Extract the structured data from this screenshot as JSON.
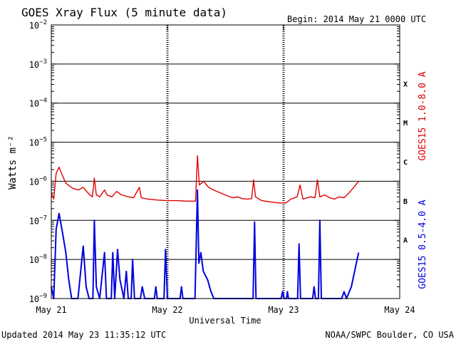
{
  "title": "GOES Xray Flux (5 minute data)",
  "begin": "Begin:  2014 May 21 0000 UTC",
  "updated": "Updated 2014 May 23 11:35:12 UTC",
  "source": "NOAA/SWPC Boulder, CO USA",
  "colors": {
    "long": "#e00000",
    "short": "#0000e0",
    "axis": "#000000"
  },
  "chart_data": {
    "type": "line",
    "title": "GOES Xray Flux (5 minute data)",
    "xlabel": "Universal Time",
    "ylabel": "Watts m⁻²",
    "x_range_hours": [
      0,
      72
    ],
    "x_ticks": [
      {
        "h": 0,
        "label": "May 21"
      },
      {
        "h": 24,
        "label": "May 22"
      },
      {
        "h": 48,
        "label": "May 23"
      },
      {
        "h": 72,
        "label": "May 24"
      }
    ],
    "y_scale": "log",
    "ylim": [
      1e-09,
      0.01
    ],
    "y_ticks": [
      {
        "exp": -9,
        "label": "10",
        "sup": "−9"
      },
      {
        "exp": -8,
        "label": "10",
        "sup": "−8"
      },
      {
        "exp": -7,
        "label": "10",
        "sup": "−7"
      },
      {
        "exp": -6,
        "label": "10",
        "sup": "−6"
      },
      {
        "exp": -5,
        "label": "10",
        "sup": "−5"
      },
      {
        "exp": -4,
        "label": "10",
        "sup": "−4"
      },
      {
        "exp": -3,
        "label": "10",
        "sup": "−3"
      },
      {
        "exp": -2,
        "label": "10",
        "sup": "−2"
      }
    ],
    "flare_classes": [
      {
        "label": "A",
        "exp": -8
      },
      {
        "label": "B",
        "exp": -7
      },
      {
        "label": "C",
        "exp": -6
      },
      {
        "label": "M",
        "exp": -5
      },
      {
        "label": "X",
        "exp": -4
      }
    ],
    "grid": true,
    "series": [
      {
        "name": "GOES15 1.0-8.0 A",
        "color": "#e00000",
        "points": [
          [
            0,
            5e-07
          ],
          [
            0.5,
            3.5e-07
          ],
          [
            1.0,
            1.6e-06
          ],
          [
            1.6,
            2.3e-06
          ],
          [
            2.3,
            1.4e-06
          ],
          [
            3.0,
            9e-07
          ],
          [
            3.8,
            7.5e-07
          ],
          [
            4.6,
            6.5e-07
          ],
          [
            5.6,
            6e-07
          ],
          [
            6.6,
            7e-07
          ],
          [
            7.3,
            5.5e-07
          ],
          [
            8.0,
            4.5e-07
          ],
          [
            8.5,
            4e-07
          ],
          [
            8.9,
            1.2e-06
          ],
          [
            9.3,
            4.5e-07
          ],
          [
            10.0,
            4e-07
          ],
          [
            11.0,
            6e-07
          ],
          [
            11.5,
            4.5e-07
          ],
          [
            12.5,
            4e-07
          ],
          [
            13.5,
            5.5e-07
          ],
          [
            14.5,
            4.5e-07
          ],
          [
            16.0,
            4e-07
          ],
          [
            17.0,
            3.8e-07
          ],
          [
            18.2,
            7e-07
          ],
          [
            18.6,
            3.8e-07
          ],
          [
            20.0,
            3.5e-07
          ],
          [
            22.0,
            3.3e-07
          ],
          [
            24.0,
            3.2e-07
          ],
          [
            26.0,
            3.2e-07
          ],
          [
            28.0,
            3.1e-07
          ],
          [
            29.8,
            3.1e-07
          ],
          [
            30.2,
            4.5e-06
          ],
          [
            30.6,
            8e-07
          ],
          [
            31.5,
            1e-06
          ],
          [
            32.5,
            7e-07
          ],
          [
            33.5,
            6e-07
          ],
          [
            35.0,
            5e-07
          ],
          [
            36.5,
            4.2e-07
          ],
          [
            37.5,
            3.8e-07
          ],
          [
            38.5,
            4e-07
          ],
          [
            39.5,
            3.6e-07
          ],
          [
            40.5,
            3.5e-07
          ],
          [
            41.4,
            3.6e-07
          ],
          [
            41.8,
            1.1e-06
          ],
          [
            42.2,
            4e-07
          ],
          [
            43.5,
            3.2e-07
          ],
          [
            45.0,
            3e-07
          ],
          [
            47.0,
            2.8e-07
          ],
          [
            48.5,
            2.8e-07
          ],
          [
            49.5,
            3.5e-07
          ],
          [
            50.8,
            4e-07
          ],
          [
            51.4,
            8e-07
          ],
          [
            52.0,
            3.5e-07
          ],
          [
            53.5,
            4e-07
          ],
          [
            54.5,
            3.8e-07
          ],
          [
            55.0,
            1.1e-06
          ],
          [
            55.5,
            4e-07
          ],
          [
            56.5,
            4.5e-07
          ],
          [
            57.5,
            3.8e-07
          ],
          [
            58.5,
            3.5e-07
          ],
          [
            59.5,
            4e-07
          ],
          [
            60.5,
            3.8e-07
          ],
          [
            61.5,
            5e-07
          ],
          [
            62.5,
            7e-07
          ],
          [
            63.5,
            1e-06
          ]
        ]
      },
      {
        "name": "GOES15 0.5-4.0 A",
        "color": "#0000e0",
        "points": [
          [
            0,
            2e-09
          ],
          [
            0.5,
            1e-09
          ],
          [
            1.0,
            6e-08
          ],
          [
            1.6,
            1.5e-07
          ],
          [
            2.3,
            5e-08
          ],
          [
            3.0,
            1.5e-08
          ],
          [
            3.6,
            3e-09
          ],
          [
            4.2,
            1e-09
          ],
          [
            5.5,
            1e-09
          ],
          [
            6.6,
            2.2e-08
          ],
          [
            7.2,
            2e-09
          ],
          [
            7.8,
            1e-09
          ],
          [
            8.6,
            1e-09
          ],
          [
            8.9,
            1e-07
          ],
          [
            9.3,
            2e-09
          ],
          [
            10.0,
            1e-09
          ],
          [
            11.0,
            1.5e-08
          ],
          [
            11.4,
            1e-09
          ],
          [
            12.4,
            1e-09
          ],
          [
            12.7,
            1.5e-08
          ],
          [
            13.1,
            1e-09
          ],
          [
            13.7,
            1.8e-08
          ],
          [
            14.2,
            3e-09
          ],
          [
            15.0,
            1e-09
          ],
          [
            15.5,
            5e-09
          ],
          [
            15.9,
            1e-09
          ],
          [
            16.5,
            1e-09
          ],
          [
            16.8,
            1e-08
          ],
          [
            17.2,
            1e-09
          ],
          [
            18.4,
            1e-09
          ],
          [
            18.8,
            2e-09
          ],
          [
            19.3,
            1e-09
          ],
          [
            21.3,
            1e-09
          ],
          [
            21.6,
            2e-09
          ],
          [
            21.9,
            1e-09
          ],
          [
            23.3,
            1e-09
          ],
          [
            23.6,
            1.8e-08
          ],
          [
            24.0,
            1e-09
          ],
          [
            26.6,
            1e-09
          ],
          [
            26.9,
            2e-09
          ],
          [
            27.2,
            1e-09
          ],
          [
            29.7,
            1e-09
          ],
          [
            30.2,
            6e-07
          ],
          [
            30.5,
            8e-09
          ],
          [
            30.9,
            1.5e-08
          ],
          [
            31.4,
            5e-09
          ],
          [
            32.3,
            3e-09
          ],
          [
            33.0,
            1.5e-09
          ],
          [
            33.6,
            1e-09
          ],
          [
            41.7,
            1e-09
          ],
          [
            42.0,
            9e-08
          ],
          [
            42.3,
            1e-09
          ],
          [
            45.0,
            1e-09
          ],
          [
            47.5,
            1e-09
          ],
          [
            47.8,
            1.5e-09
          ],
          [
            48.1,
            1e-09
          ],
          [
            48.6,
            1e-09
          ],
          [
            48.8,
            1.5e-09
          ],
          [
            49.0,
            1e-09
          ],
          [
            50.9,
            1e-09
          ],
          [
            51.2,
            2.5e-08
          ],
          [
            51.5,
            1e-09
          ],
          [
            54.0,
            1e-09
          ],
          [
            54.3,
            2e-09
          ],
          [
            54.6,
            1e-09
          ],
          [
            55.2,
            1e-09
          ],
          [
            55.5,
            1e-07
          ],
          [
            55.8,
            1e-09
          ],
          [
            56.5,
            1e-09
          ],
          [
            60.0,
            1e-09
          ],
          [
            60.5,
            1.5e-09
          ],
          [
            61.0,
            1e-09
          ],
          [
            62.0,
            2e-09
          ],
          [
            63.5,
            1.5e-08
          ]
        ]
      }
    ]
  }
}
